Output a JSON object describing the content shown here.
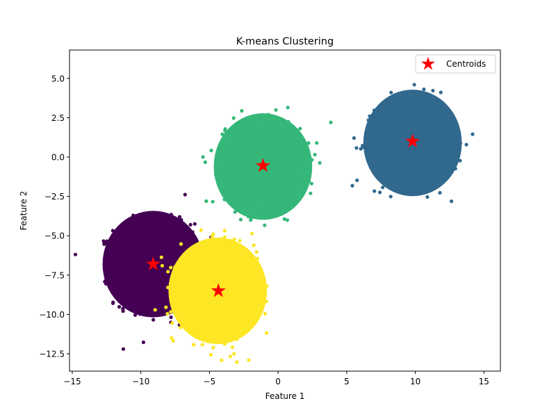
{
  "chart_data": {
    "type": "scatter",
    "title": "K-means Clustering",
    "xlabel": "Feature 1",
    "ylabel": "Feature 2",
    "xlim": [
      -15.2,
      16.2
    ],
    "ylim": [
      -13.6,
      6.8
    ],
    "x_ticks": [
      -15,
      -10,
      -5,
      0,
      5,
      10,
      15
    ],
    "x_tick_labels": [
      "−15",
      "−10",
      "−5",
      "0",
      "5",
      "10",
      "15"
    ],
    "y_ticks": [
      -12.5,
      -10.0,
      -7.5,
      -5.0,
      -2.5,
      0.0,
      2.5,
      5.0
    ],
    "y_tick_labels": [
      "−12.5",
      "−10.0",
      "−7.5",
      "−5.0",
      "−2.5",
      "0.0",
      "2.5",
      "5.0"
    ],
    "grid": false,
    "legend_placement": "upper right",
    "clusters": [
      {
        "label": 0,
        "color": "#440154",
        "center": [
          -9.1,
          -6.8
        ],
        "spread": [
          1.8,
          1.65
        ]
      },
      {
        "label": 1,
        "color": "#31688e",
        "center": [
          9.8,
          0.9
        ],
        "spread": [
          1.75,
          1.65
        ]
      },
      {
        "label": 2,
        "color": "#35b779",
        "center": [
          -1.1,
          -0.6
        ],
        "spread": [
          1.75,
          1.65
        ]
      },
      {
        "label": 3,
        "color": "#fde725",
        "center": [
          -4.4,
          -8.5
        ],
        "spread": [
          1.75,
          1.65
        ]
      }
    ],
    "centroids": {
      "name": "Centroids",
      "color": "#ff0000",
      "points": [
        {
          "x": -9.1,
          "y": -6.8
        },
        {
          "x": 9.8,
          "y": 1.0
        },
        {
          "x": -1.1,
          "y": -0.55
        },
        {
          "x": -4.35,
          "y": -8.5
        }
      ]
    }
  }
}
